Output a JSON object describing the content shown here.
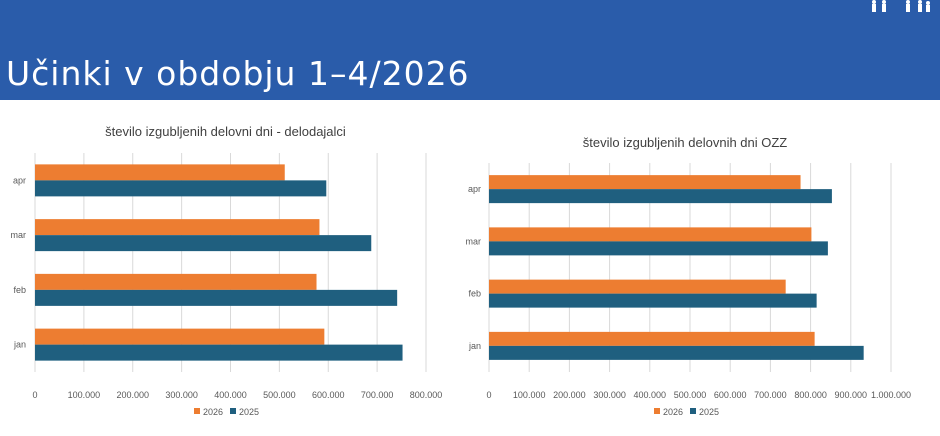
{
  "slide": {
    "title": "Učinki v obdobju 1–4/2026",
    "header_color": "#2a5caa"
  },
  "colors": {
    "s2026": "#ed7d31",
    "s2025": "#1f5f7f"
  },
  "chart_data": [
    {
      "type": "bar",
      "orientation": "horizontal",
      "title": "število izgubljenih delovni dni - delodajalci",
      "categories": [
        "jan",
        "feb",
        "mar",
        "apr"
      ],
      "series": [
        {
          "name": "2026",
          "values": [
            592000,
            576000,
            582000,
            511000
          ],
          "color": "#ed7d31"
        },
        {
          "name": "2025",
          "values": [
            752000,
            741000,
            688000,
            596000
          ],
          "color": "#1f5f7f"
        }
      ],
      "xlim": [
        0,
        800000
      ],
      "ticks": [
        "0",
        "100.000",
        "200.000",
        "300.000",
        "400.000",
        "500.000",
        "600.000",
        "700.000",
        "800.000"
      ],
      "grid": true,
      "legend": "bottom"
    },
    {
      "type": "bar",
      "orientation": "horizontal",
      "title": "število izgubljenih delovnih dni OZZ",
      "categories": [
        "jan",
        "feb",
        "mar",
        "apr"
      ],
      "series": [
        {
          "name": "2026",
          "values": [
            810000,
            738000,
            802000,
            775000
          ],
          "color": "#ed7d31"
        },
        {
          "name": "2025",
          "values": [
            932000,
            815000,
            843000,
            853000
          ],
          "color": "#1f5f7f"
        }
      ],
      "xlim": [
        0,
        1000000
      ],
      "ticks": [
        "0",
        "100.000",
        "200.000",
        "300.000",
        "400.000",
        "500.000",
        "600.000",
        "700.000",
        "800.000",
        "900.000",
        "1.000.000"
      ],
      "grid": true,
      "legend": "bottom"
    }
  ]
}
